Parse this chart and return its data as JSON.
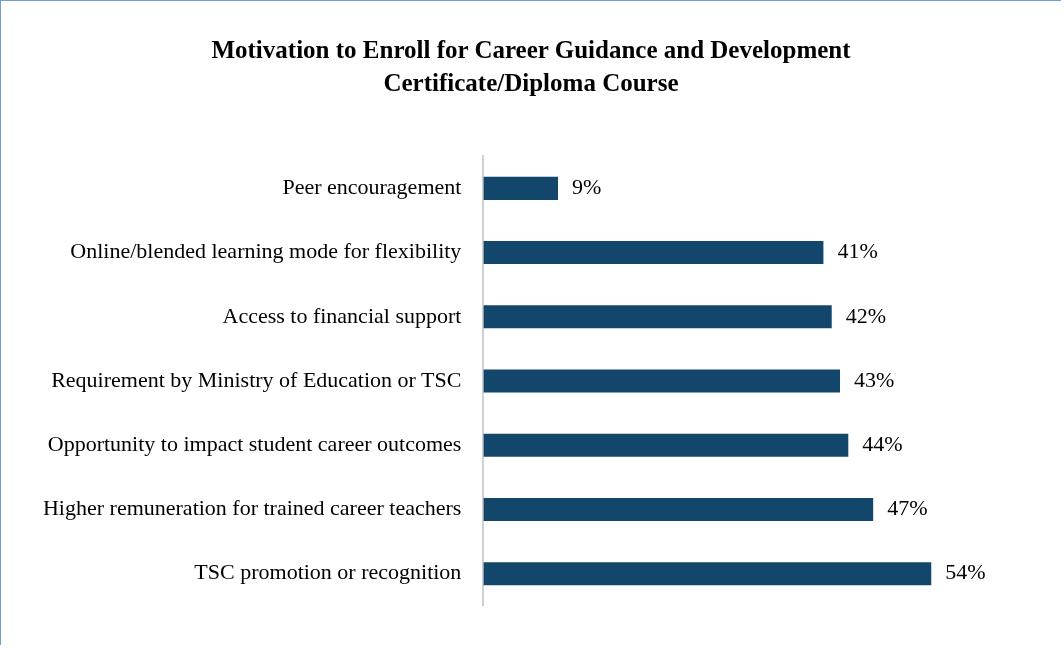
{
  "chart_data": {
    "type": "bar",
    "orientation": "horizontal",
    "title": "Motivation to Enroll for Career Guidance and Development Certificate/Diploma Course",
    "categories": [
      "Peer encouragement",
      "Online/blended learning mode for flexibility",
      "Access to financial support",
      "Requirement by Ministry of Education or TSC",
      "Opportunity to impact student career outcomes",
      "Higher remuneration for trained career teachers",
      "TSC promotion or recognition"
    ],
    "values": [
      9,
      41,
      42,
      43,
      44,
      47,
      54
    ],
    "value_labels": [
      "9%",
      "41%",
      "42%",
      "43%",
      "44%",
      "47%",
      "54%"
    ],
    "color": "#12466b",
    "legend": false,
    "tick_labels": "y"
  }
}
